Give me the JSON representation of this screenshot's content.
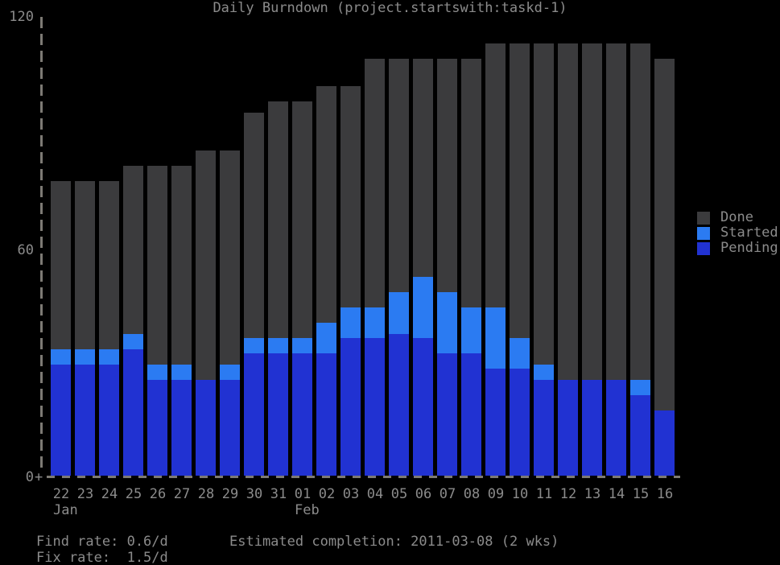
{
  "title": "Daily Burndown (project.startswith:taskd-1)",
  "colors": {
    "done": "#3b3b3d",
    "started": "#2b7bf2",
    "pending": "#2132d2",
    "text": "#8b8b8b",
    "axis": "#7d7a74",
    "background": "#000000"
  },
  "y_axis": {
    "labels": [
      "120",
      "60",
      "0"
    ]
  },
  "x_axis": {
    "origin_marker": "+",
    "month_labels": [
      {
        "text": "Jan",
        "under_category": "22"
      },
      {
        "text": "Feb",
        "under_category": "01"
      }
    ]
  },
  "legend": [
    {
      "label": "Done",
      "color_key": "done"
    },
    {
      "label": "Started",
      "color_key": "started"
    },
    {
      "label": "Pending",
      "color_key": "pending"
    }
  ],
  "footer": {
    "find_rate": "Find rate: 0.6/d",
    "fix_rate": "Fix rate:  1.5/d",
    "estimated": "Estimated completion: 2011-03-08 (2 wks)"
  },
  "chart_data": {
    "type": "bar",
    "stacked": true,
    "title": "Daily Burndown (project.startswith:taskd-1)",
    "categories": [
      "22",
      "23",
      "24",
      "25",
      "26",
      "27",
      "28",
      "29",
      "30",
      "31",
      "01",
      "02",
      "03",
      "04",
      "05",
      "06",
      "07",
      "08",
      "09",
      "10",
      "11",
      "12",
      "13",
      "14",
      "15",
      "16"
    ],
    "category_months": [
      "Jan",
      "Jan",
      "Jan",
      "Jan",
      "Jan",
      "Jan",
      "Jan",
      "Jan",
      "Jan",
      "Jan",
      "Feb",
      "Feb",
      "Feb",
      "Feb",
      "Feb",
      "Feb",
      "Feb",
      "Feb",
      "Feb",
      "Feb",
      "Feb",
      "Feb",
      "Feb",
      "Feb",
      "Feb",
      "Feb"
    ],
    "series": [
      {
        "name": "Pending",
        "color_key": "pending",
        "values": [
          29,
          29,
          29,
          33,
          25,
          25,
          25,
          25,
          32,
          32,
          32,
          32,
          36,
          36,
          37,
          36,
          32,
          32,
          28,
          28,
          25,
          25,
          25,
          25,
          21,
          17
        ]
      },
      {
        "name": "Started",
        "color_key": "started",
        "values": [
          4,
          4,
          4,
          4,
          4,
          4,
          0,
          4,
          4,
          4,
          4,
          8,
          8,
          8,
          11,
          16,
          16,
          12,
          16,
          8,
          4,
          0,
          0,
          0,
          4,
          0
        ]
      },
      {
        "name": "Done",
        "color_key": "done",
        "values": [
          44,
          44,
          44,
          44,
          52,
          52,
          60,
          56,
          59,
          62,
          62,
          62,
          58,
          65,
          61,
          57,
          61,
          65,
          69,
          77,
          84,
          88,
          88,
          88,
          88,
          92
        ]
      }
    ],
    "totals": [
      77,
      77,
      77,
      81,
      81,
      81,
      85,
      85,
      95,
      98,
      98,
      102,
      102,
      109,
      109,
      109,
      109,
      109,
      113,
      113,
      113,
      113,
      113,
      113,
      113,
      109
    ],
    "ylim": [
      0,
      120
    ],
    "y_ticks": [
      0,
      60,
      120
    ],
    "grid": false,
    "legend_position": "right"
  }
}
